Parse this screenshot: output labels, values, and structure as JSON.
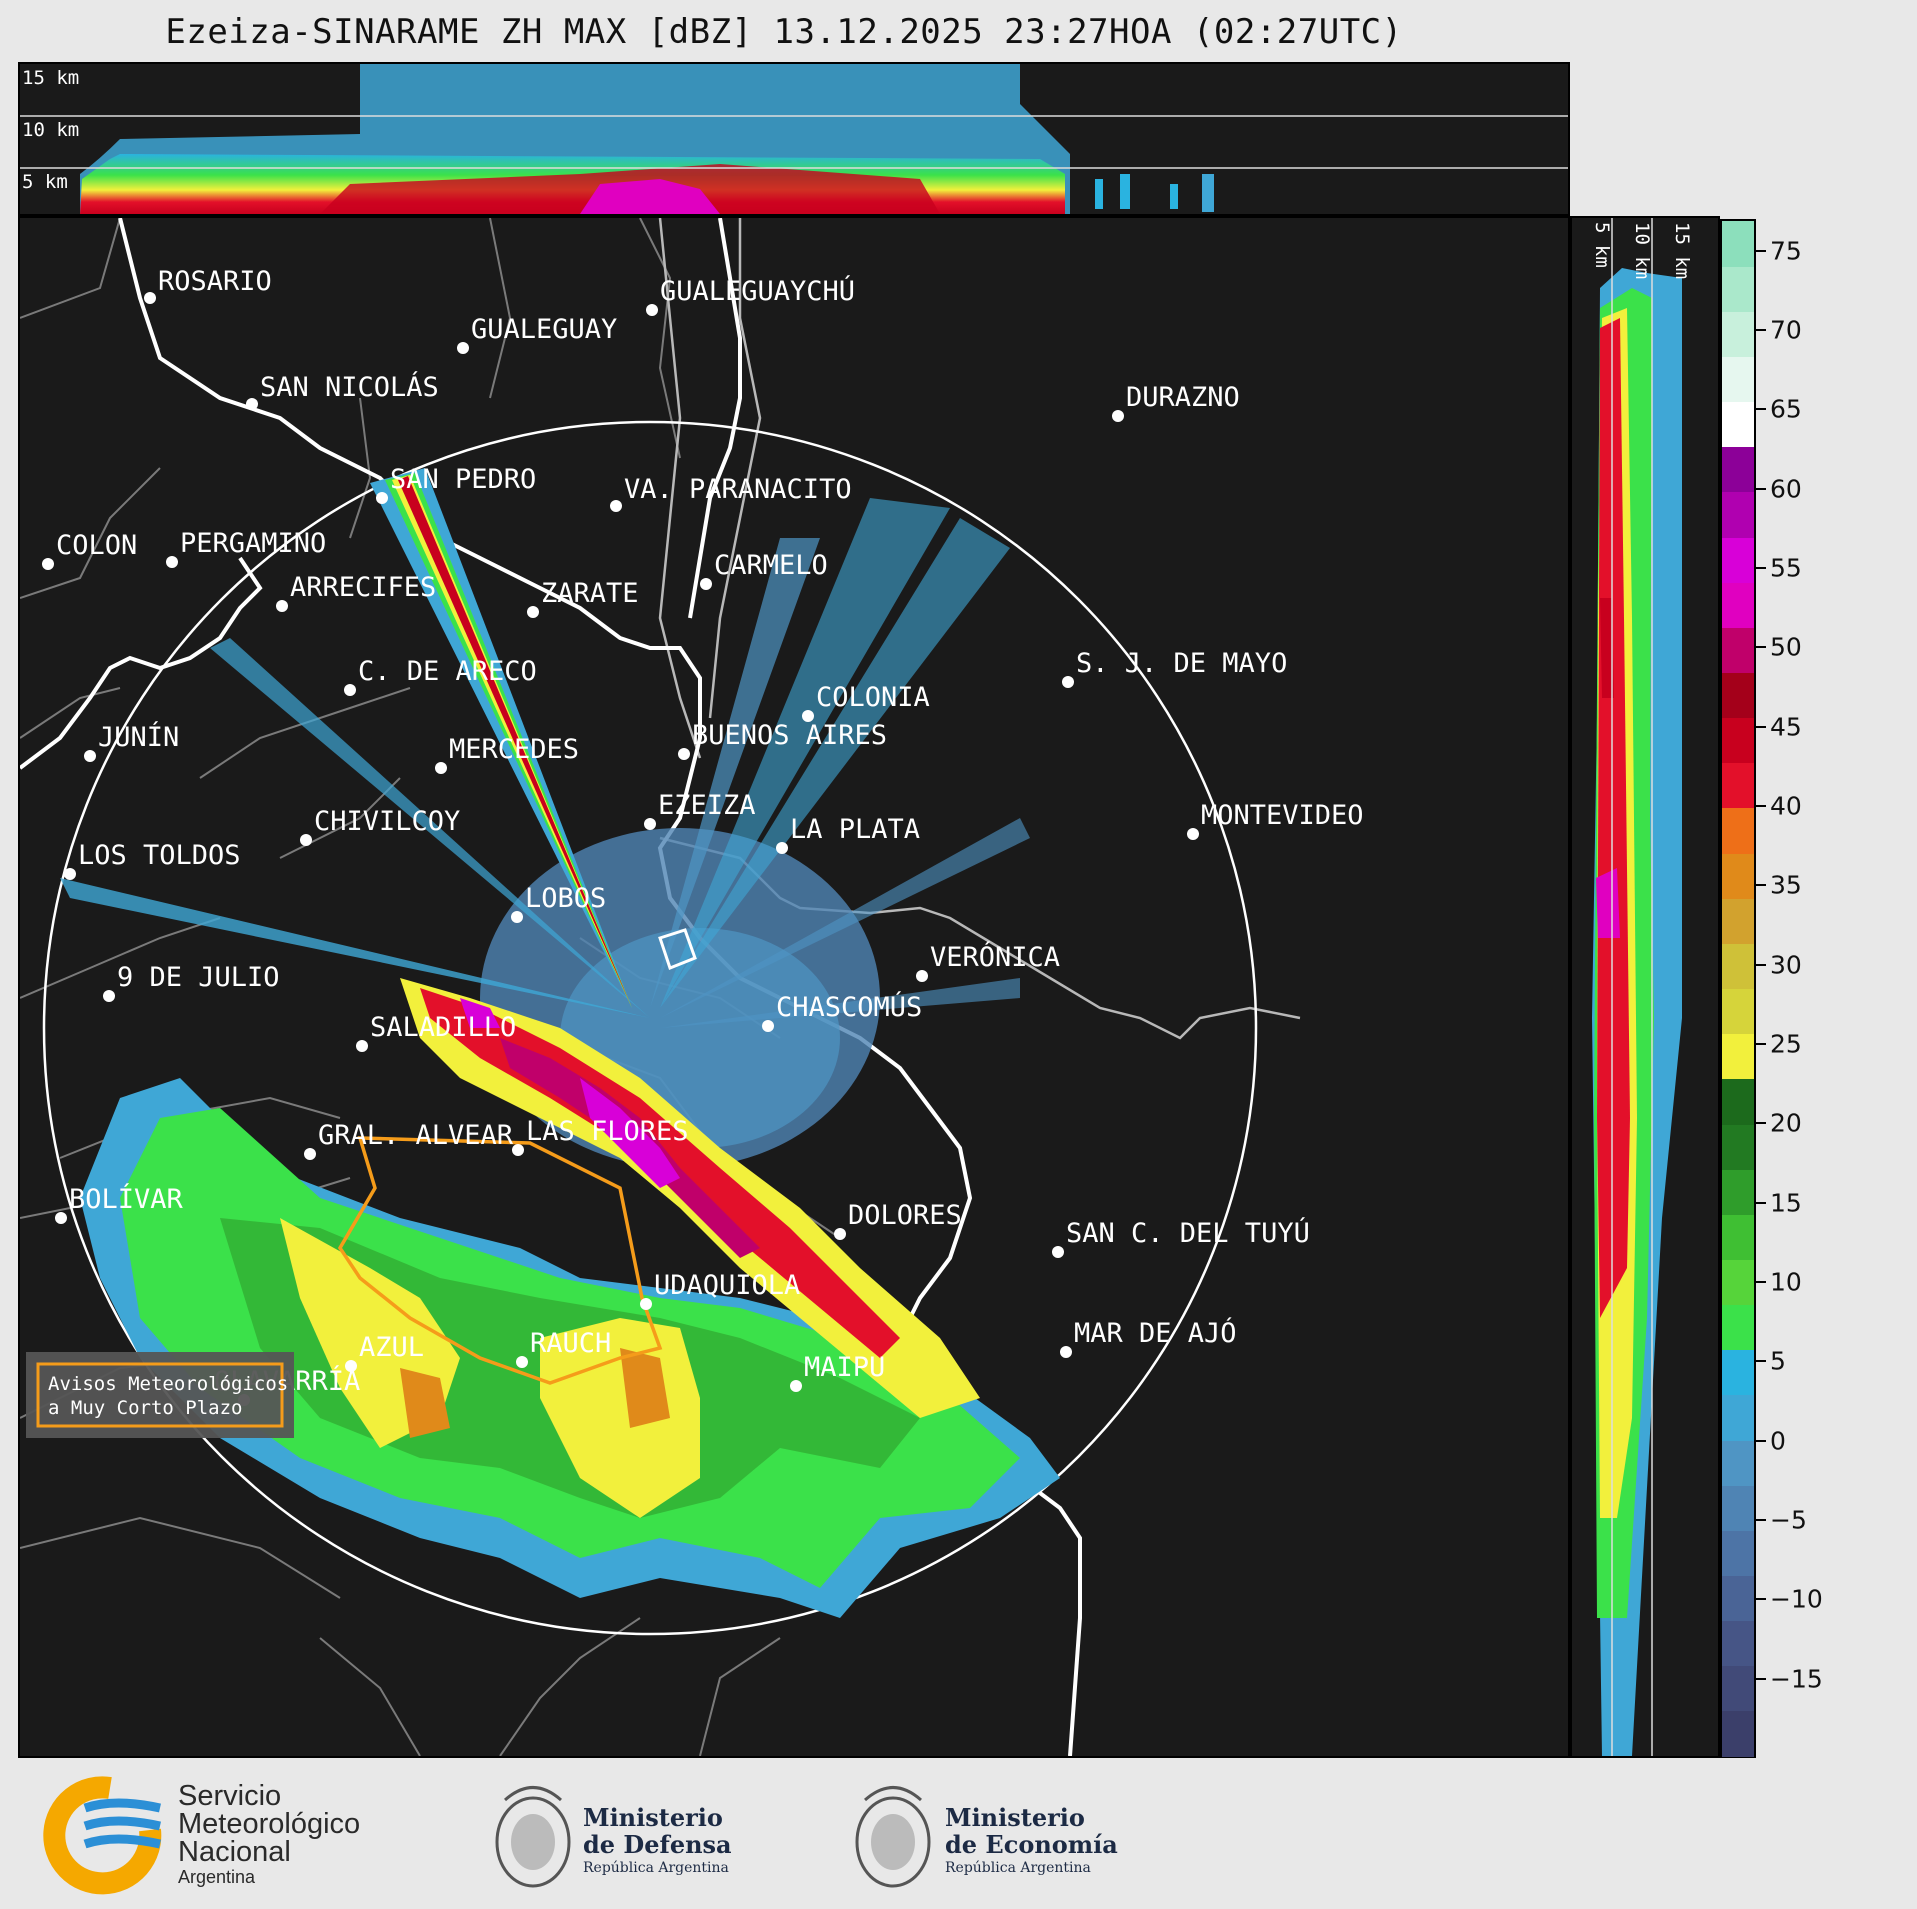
{
  "title": "Ezeiza-SINARAME ZH MAX [dBZ] 13.12.2025 23:27HOA (02:27UTC)",
  "height_labels_top": [
    "15 km",
    "10 km",
    "5 km"
  ],
  "height_labels_side": [
    "5 km",
    "10 km",
    "15 km"
  ],
  "colorbar": {
    "ticks": [
      "75",
      "70",
      "65",
      "60",
      "55",
      "50",
      "45",
      "40",
      "35",
      "30",
      "25",
      "20",
      "15",
      "10",
      "5",
      "0",
      "−5",
      "−10",
      "−15"
    ],
    "tick_values": [
      75,
      70,
      65,
      60,
      55,
      50,
      45,
      40,
      35,
      30,
      25,
      20,
      15,
      10,
      5,
      0,
      -5,
      -10,
      -15
    ],
    "range": [
      -20,
      77
    ],
    "colors": [
      "#3b3f6a",
      "#414a78",
      "#465586",
      "#4a6496",
      "#4d74a6",
      "#4f84b4",
      "#4f95c4",
      "#3fa7d6",
      "#2ab3e0",
      "#3be14a",
      "#56d43a",
      "#3fbf33",
      "#2f9d2b",
      "#227a22",
      "#1c6a1c",
      "#f2f03c",
      "#d6d43a",
      "#cfc138",
      "#d2a22e",
      "#e08a1a",
      "#ee6f18",
      "#e3102a",
      "#c8001e",
      "#a4001a",
      "#c0006a",
      "#e000c0",
      "#d800d8",
      "#b000b0",
      "#8c0098",
      "#ffffff",
      "#e6f7ef",
      "#c8f0dc",
      "#aae8cb",
      "#8cdfbc"
    ]
  },
  "cities": [
    {
      "name": "ROSARIO"
    },
    {
      "name": "GUALEGUAYCHÚ"
    },
    {
      "name": "GUALEGUAY"
    },
    {
      "name": "SAN NICOLÁS"
    },
    {
      "name": "DURAZNO"
    },
    {
      "name": "SAN PEDRO"
    },
    {
      "name": "VA. PARANACITO"
    },
    {
      "name": "COLON"
    },
    {
      "name": "PERGAMINO"
    },
    {
      "name": "CARMELO"
    },
    {
      "name": "ARRECIFES"
    },
    {
      "name": "ZARATE"
    },
    {
      "name": "S. J. DE MAYO"
    },
    {
      "name": "C. DE ARECO"
    },
    {
      "name": "COLONIA"
    },
    {
      "name": "JUNÍN"
    },
    {
      "name": "BUENOS AIRES"
    },
    {
      "name": "MERCEDES"
    },
    {
      "name": "EZEIZA"
    },
    {
      "name": "MONTEVIDEO"
    },
    {
      "name": "CHIVILCOY"
    },
    {
      "name": "LA PLATA"
    },
    {
      "name": "LOS TOLDOS"
    },
    {
      "name": "LOBOS"
    },
    {
      "name": "VERÓNICA"
    },
    {
      "name": "9 DE JULIO"
    },
    {
      "name": "CHASCOMÚS"
    },
    {
      "name": "SALADILLO"
    },
    {
      "name": "GRAL. ALVEAR"
    },
    {
      "name": "LAS FLORES"
    },
    {
      "name": "BOLÍVAR"
    },
    {
      "name": "DOLORES"
    },
    {
      "name": "SAN C. DEL TUYÚ"
    },
    {
      "name": "UDAQUIOLA"
    },
    {
      "name": "AZUL"
    },
    {
      "name": "RAUCH"
    },
    {
      "name": "MAR DE AJÓ"
    },
    {
      "name": "OLAVARRÍA"
    },
    {
      "name": "MAIPU"
    }
  ],
  "alert_box": {
    "line1": "Avisos Meteorológicos",
    "line2": "a Muy Corto Plazo"
  },
  "logos": {
    "smn": {
      "line1": "Servicio",
      "line2": "Meteorológico",
      "line3": "Nacional",
      "line4": "Argentina"
    },
    "defensa": {
      "line1": "Ministerio",
      "line2": "de Defensa",
      "line3": "República Argentina"
    },
    "economia": {
      "line1": "Ministerio",
      "line2": "de Economía",
      "line3": "República Argentina"
    }
  }
}
